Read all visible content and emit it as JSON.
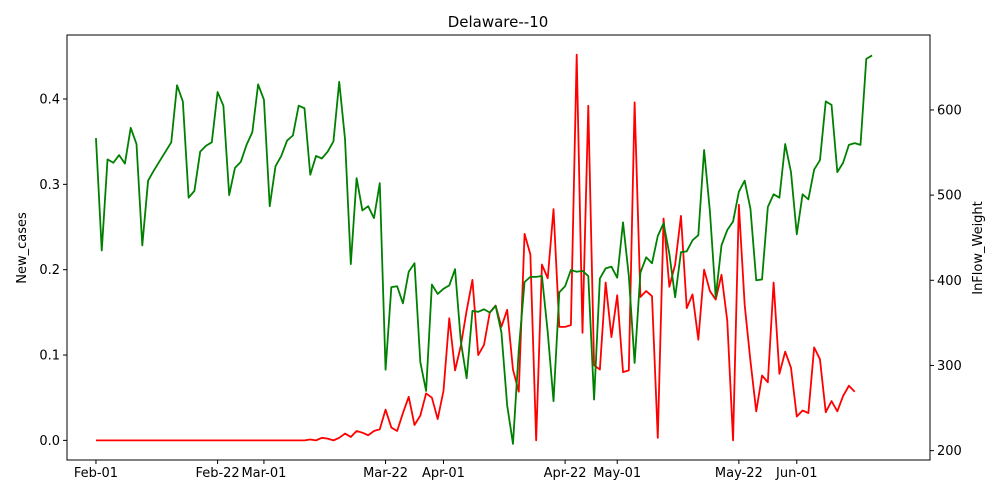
{
  "chart_data": {
    "type": "line",
    "title": "Delaware--10",
    "ylabel_left": "New_cases",
    "ylabel_right": "InFlow_Weight",
    "x_tick_labels": [
      "Feb-01",
      "Feb-22",
      "Mar-01",
      "Mar-22",
      "Apr-01",
      "Apr-22",
      "May-01",
      "May-22",
      "Jun-01"
    ],
    "x_tick_dates": [
      "2020-02-01",
      "2020-02-22",
      "2020-03-01",
      "2020-03-22",
      "2020-04-01",
      "2020-04-22",
      "2020-05-01",
      "2020-05-22",
      "2020-06-01"
    ],
    "x_range": [
      "2020-01-27",
      "2020-06-24"
    ],
    "y_left": {
      "range": [
        -0.023,
        0.475
      ],
      "ticks": [
        0.0,
        0.1,
        0.2,
        0.3,
        0.4
      ],
      "tick_labels": [
        "0.0",
        "0.1",
        "0.2",
        "0.3",
        "0.4"
      ]
    },
    "y_right": {
      "range": [
        189,
        688
      ],
      "ticks": [
        200,
        300,
        400,
        500,
        600
      ],
      "tick_labels": [
        "200",
        "300",
        "400",
        "500",
        "600"
      ]
    },
    "grid": false,
    "series": [
      {
        "axis": "left",
        "color": "#ff0000",
        "start_date": "2020-02-01",
        "values": [
          0,
          0,
          0,
          0,
          0,
          0,
          0,
          0,
          0,
          0,
          0,
          0,
          0,
          0,
          0,
          0,
          0,
          0,
          0,
          0,
          0,
          0,
          0,
          0,
          0,
          0,
          0,
          0,
          0,
          0,
          0,
          0,
          0,
          0,
          0,
          0,
          0,
          0.001,
          0,
          0.003,
          0.002,
          0,
          0.003,
          0.008,
          0.004,
          0.011,
          0.009,
          0.006,
          0.011,
          0.013,
          0.036,
          0.015,
          0.011,
          0.032,
          0.051,
          0.018,
          0.029,
          0.055,
          0.05,
          0.025,
          0.058,
          0.143,
          0.082,
          0.111,
          0.152,
          0.188,
          0.1,
          0.112,
          0.15,
          0.158,
          0.133,
          0.153,
          0.083,
          0.057,
          0.242,
          0.218,
          0,
          0.206,
          0.19,
          0.271,
          0.133,
          0.133,
          0.135,
          0.452,
          0.126,
          0.392,
          0.088,
          0.083,
          0.185,
          0.121,
          0.17,
          0.08,
          0.082,
          0.396,
          0.168,
          0.175,
          0.169,
          0.003,
          0.26,
          0.18,
          0.206,
          0.263,
          0.155,
          0.171,
          0.118,
          0.2,
          0.175,
          0.165,
          0.194,
          0.14,
          0,
          0.276,
          0.159,
          0.093,
          0.034,
          0.076,
          0.068,
          0.185,
          0.078,
          0.104,
          0.085,
          0.028,
          0.035,
          0.032,
          0.109,
          0.095,
          0.033,
          0.046,
          0.034,
          0.052,
          0.064,
          0.057
        ]
      },
      {
        "axis": "right",
        "color": "#008000",
        "start_date": "2020-02-01",
        "values": [
          567,
          435,
          542,
          538,
          547,
          537,
          579,
          560,
          441,
          517,
          529,
          540,
          551,
          562,
          629,
          610,
          497,
          505,
          551,
          558,
          562,
          621,
          605,
          500,
          532,
          539,
          559,
          574,
          630,
          612,
          487,
          534,
          546,
          564,
          570,
          605,
          602,
          524,
          546,
          543,
          551,
          563,
          633,
          566,
          419,
          520,
          482,
          487,
          473,
          514,
          295,
          392,
          393,
          373,
          410,
          420,
          304,
          270,
          395,
          384,
          390,
          394,
          413,
          328,
          285,
          364,
          363,
          366,
          362,
          370,
          339,
          253,
          208,
          318,
          398,
          404,
          404,
          405,
          339,
          258,
          386,
          393,
          412,
          410,
          411,
          405,
          260,
          402,
          414,
          416,
          403,
          468,
          405,
          303,
          409,
          427,
          420,
          452,
          467,
          431,
          380,
          433,
          434,
          447,
          453,
          553,
          481,
          380,
          441,
          459,
          469,
          504,
          517,
          484,
          400,
          401,
          486,
          501,
          497,
          560,
          527,
          454,
          501,
          495,
          530,
          541,
          610,
          606,
          527,
          538,
          559,
          561,
          559,
          660,
          664
        ]
      }
    ]
  }
}
